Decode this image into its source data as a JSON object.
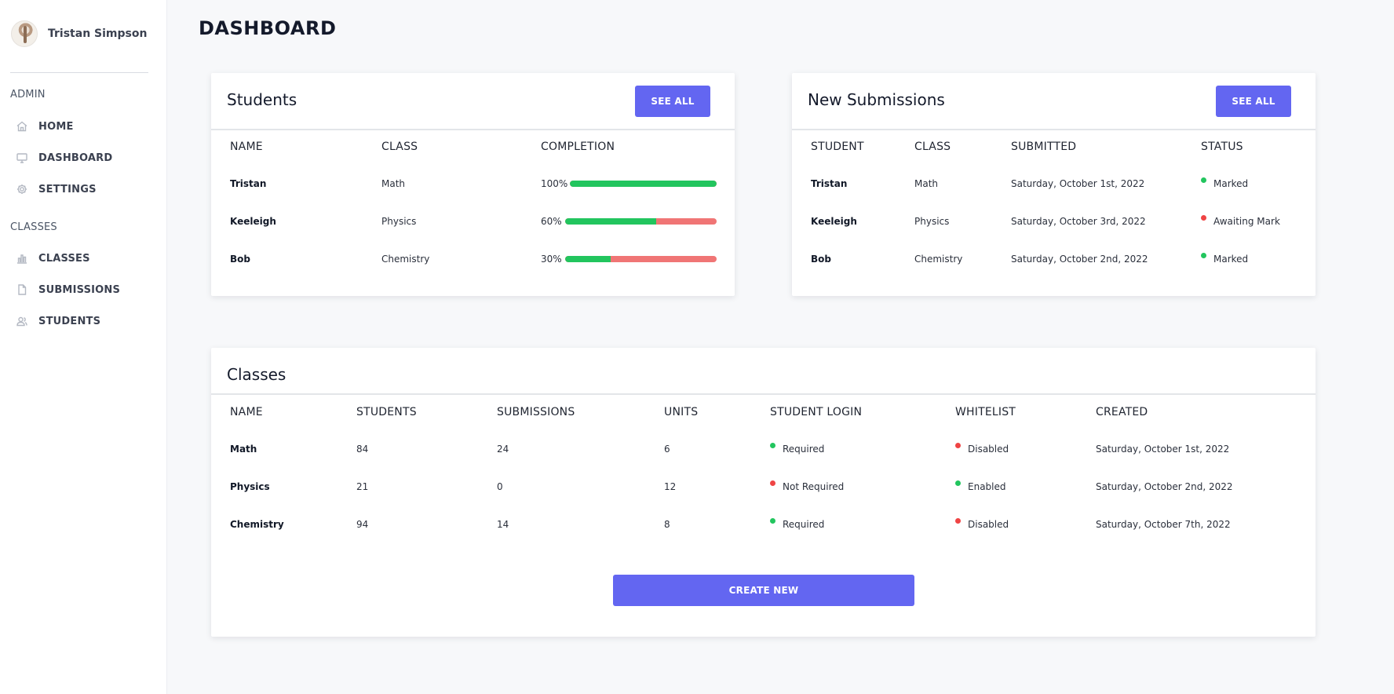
{
  "user": {
    "name": "Tristan Simpson"
  },
  "sidebar": {
    "sections": [
      {
        "title": "ADMIN",
        "items": [
          {
            "label": "HOME",
            "icon": "home-icon"
          },
          {
            "label": "DASHBOARD",
            "icon": "monitor-icon"
          },
          {
            "label": "SETTINGS",
            "icon": "gear-icon"
          }
        ]
      },
      {
        "title": "CLASSES",
        "items": [
          {
            "label": "CLASSES",
            "icon": "bar-chart-icon"
          },
          {
            "label": "SUBMISSIONS",
            "icon": "document-icon"
          },
          {
            "label": "STUDENTS",
            "icon": "users-icon"
          }
        ]
      }
    ]
  },
  "page": {
    "title": "DASHBOARD"
  },
  "students_card": {
    "title": "Students",
    "see_all": "SEE ALL",
    "columns": [
      "NAME",
      "CLASS",
      "COMPLETION"
    ],
    "rows": [
      {
        "name": "Tristan",
        "class": "Math",
        "completion_label": "100%",
        "completion": 1.0
      },
      {
        "name": "Keeleigh",
        "class": "Physics",
        "completion_label": "60%",
        "completion": 0.6
      },
      {
        "name": "Bob",
        "class": "Chemistry",
        "completion_label": "30%",
        "completion": 0.3
      }
    ]
  },
  "submissions_card": {
    "title": "New Submissions",
    "see_all": "SEE ALL",
    "columns": [
      "STUDENT",
      "CLASS",
      "SUBMITTED",
      "STATUS"
    ],
    "rows": [
      {
        "student": "Tristan",
        "class": "Math",
        "submitted": "Saturday, October 1st, 2022",
        "status": "Marked",
        "status_color": "green"
      },
      {
        "student": "Keeleigh",
        "class": "Physics",
        "submitted": "Saturday, October 3rd, 2022",
        "status": "Awaiting Mark",
        "status_color": "red"
      },
      {
        "student": "Bob",
        "class": "Chemistry",
        "submitted": "Saturday, October 2nd, 2022",
        "status": "Marked",
        "status_color": "green"
      }
    ]
  },
  "classes_card": {
    "title": "Classes",
    "columns": [
      "NAME",
      "STUDENTS",
      "SUBMISSIONS",
      "UNITS",
      "STUDENT LOGIN",
      "WHITELIST",
      "CREATED"
    ],
    "rows": [
      {
        "name": "Math",
        "students": "84",
        "submissions": "24",
        "units": "6",
        "login": "Required",
        "login_color": "green",
        "whitelist": "Disabled",
        "whitelist_color": "red",
        "created": "Saturday, October 1st, 2022"
      },
      {
        "name": "Physics",
        "students": "21",
        "submissions": "0",
        "units": "12",
        "login": "Not Required",
        "login_color": "red",
        "whitelist": "Enabled",
        "whitelist_color": "green",
        "created": "Saturday, October 2nd, 2022"
      },
      {
        "name": "Chemistry",
        "students": "94",
        "submissions": "14",
        "units": "8",
        "login": "Required",
        "login_color": "green",
        "whitelist": "Disabled",
        "whitelist_color": "red",
        "created": "Saturday, October 7th, 2022"
      }
    ],
    "create_button": "CREATE NEW"
  },
  "colors": {
    "accent": "#6366f1",
    "success": "#22c55e",
    "danger": "#ef4444",
    "progress_bg": "#f07575"
  }
}
